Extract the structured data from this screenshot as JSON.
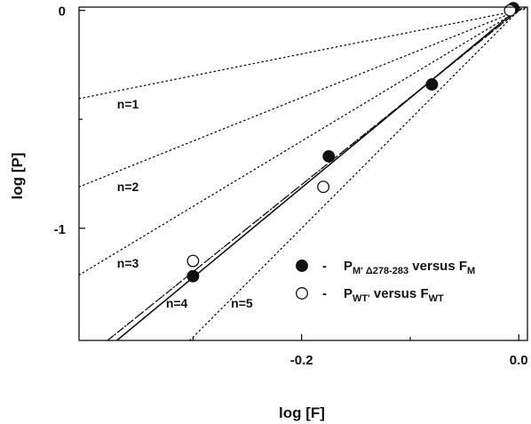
{
  "chart_data": {
    "type": "scatter",
    "xlabel": "log [F]",
    "ylabel": "log [P]",
    "xlim": [
      -0.405,
      0.008
    ],
    "ylim": [
      -1.515,
      0.015
    ],
    "x_ticks": [
      {
        "value": -0.2,
        "label": "-0.2"
      },
      {
        "value": 0.0,
        "label": "0.0"
      }
    ],
    "y_ticks": [
      {
        "value": 0,
        "label": "0"
      },
      {
        "value": -1,
        "label": "-1"
      }
    ],
    "x_minor_ticks": [
      -0.3,
      -0.1
    ],
    "y_minor_ticks": [
      -0.5
    ],
    "grid": false,
    "legend_position": "bottom-right",
    "series": [
      {
        "name": "P_M' Δ278-283 versus F_M",
        "legend": {
          "main": "P",
          "sub": "M' Δ278-283",
          "mid": " versus F",
          "sub2": "M"
        },
        "marker": "filled-circle",
        "color": "#111111",
        "x": [
          -0.3,
          -0.175,
          -0.08,
          -0.005
        ],
        "y": [
          -1.22,
          -0.67,
          -0.34,
          0.01
        ]
      },
      {
        "name": "P_WT' versus F_WT",
        "legend": {
          "main": "P",
          "sub": "WT'",
          "mid": " versus F",
          "sub2": "WT"
        },
        "marker": "open-circle",
        "color": "#111111",
        "x": [
          -0.3,
          -0.18,
          -0.008
        ],
        "y": [
          -1.15,
          -0.81,
          0.0
        ]
      }
    ],
    "reference_lines": [
      {
        "label": "n=1",
        "slope": 1
      },
      {
        "label": "n=2",
        "slope": 2
      },
      {
        "label": "n=3",
        "slope": 3
      },
      {
        "label": "n=4",
        "slope": 4
      },
      {
        "label": "n=5",
        "slope": 5
      }
    ],
    "fit_lines": [
      {
        "style": "solid",
        "slope": 4.12,
        "intercept": 0.01
      },
      {
        "style": "dashed",
        "slope": 4.0,
        "intercept": 0.0
      }
    ],
    "reference_label_positions": [
      {
        "label": "n=1",
        "x": -0.37,
        "y": -0.45
      },
      {
        "label": "n=2",
        "x": -0.37,
        "y": -0.83
      },
      {
        "label": "n=3",
        "x": -0.37,
        "y": -1.18
      },
      {
        "label": "n=4",
        "x": -0.325,
        "y": -1.365
      },
      {
        "label": "n=5",
        "x": -0.265,
        "y": -1.365
      }
    ]
  }
}
